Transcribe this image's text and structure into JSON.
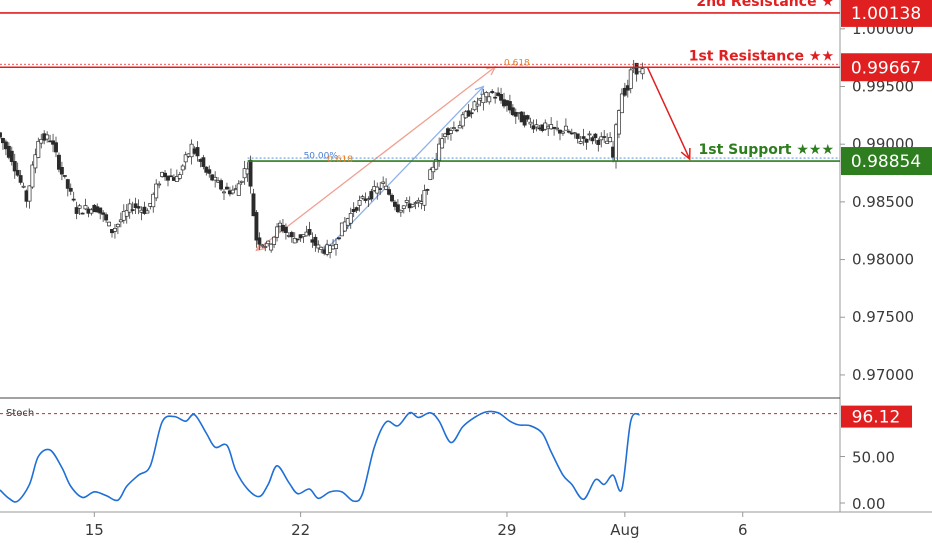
{
  "chart_data": [
    {
      "type": "candlestick",
      "ylim": [
        0.968,
        1.0025
      ],
      "y_ticks": [
        "1.00000",
        "0.99500",
        "0.99000",
        "0.98500",
        "0.98000",
        "0.97500",
        "0.97000"
      ],
      "y_tick_values": [
        1.0,
        0.995,
        0.99,
        0.985,
        0.98,
        0.975,
        0.97
      ],
      "x_ticks": [
        "15",
        "22",
        "29",
        "Aug",
        "6"
      ],
      "x_tick_values": [
        15,
        22,
        29,
        33,
        37
      ],
      "xlim": [
        11.8,
        40.3
      ],
      "levels": [
        {
          "name": "2nd Resistance ★",
          "value": 1.00138,
          "value_label": "1.00138",
          "color": "#e02020"
        },
        {
          "name": "1st Resistance ★★",
          "value": 0.99667,
          "value_label": "0.99667",
          "color": "#e02020"
        },
        {
          "name": "1st Support ★★★",
          "value": 0.98854,
          "value_label": "0.98854",
          "color": "#2e7d1f"
        }
      ],
      "fib_labels": [
        {
          "text": "0.618",
          "x": 28.9,
          "y": 0.99683,
          "color": "#e67e22"
        },
        {
          "text": "50.00%",
          "x": 22.1,
          "y": 0.98875,
          "color": "#4a7fd6"
        },
        {
          "text": "0.618",
          "x": 22.9,
          "y": 0.98845,
          "color": "#e67e22"
        }
      ],
      "path": [
        [
          11.8,
          0.991
        ],
        [
          12.3,
          0.9888
        ],
        [
          12.8,
          0.9852
        ],
        [
          13.2,
          0.9905
        ],
        [
          13.6,
          0.9905
        ],
        [
          14.0,
          0.9875
        ],
        [
          14.5,
          0.9843
        ],
        [
          15.2,
          0.9845
        ],
        [
          15.7,
          0.9825
        ],
        [
          16.4,
          0.9847
        ],
        [
          16.9,
          0.9842
        ],
        [
          17.4,
          0.9875
        ],
        [
          17.9,
          0.987
        ],
        [
          18.4,
          0.9898
        ],
        [
          18.9,
          0.9875
        ],
        [
          19.5,
          0.986
        ],
        [
          19.9,
          0.986
        ],
        [
          20.3,
          0.9883
        ],
        [
          20.6,
          0.9818
        ],
        [
          21.0,
          0.9812
        ],
        [
          21.4,
          0.983
        ],
        [
          21.8,
          0.9818
        ],
        [
          22.3,
          0.9822
        ],
        [
          22.7,
          0.981
        ],
        [
          23.1,
          0.9808
        ],
        [
          23.6,
          0.9832
        ],
        [
          24.0,
          0.9847
        ],
        [
          24.4,
          0.9855
        ],
        [
          24.9,
          0.9865
        ],
        [
          25.4,
          0.9845
        ],
        [
          25.8,
          0.9848
        ],
        [
          26.2,
          0.9848
        ],
        [
          26.6,
          0.9882
        ],
        [
          27.0,
          0.9912
        ],
        [
          27.4,
          0.9915
        ],
        [
          27.8,
          0.9928
        ],
        [
          28.2,
          0.9938
        ],
        [
          28.6,
          0.9944
        ],
        [
          29.0,
          0.9936
        ],
        [
          29.4,
          0.9925
        ],
        [
          29.9,
          0.9918
        ],
        [
          30.3,
          0.9915
        ],
        [
          30.7,
          0.9912
        ],
        [
          31.1,
          0.9912
        ],
        [
          31.5,
          0.9904
        ],
        [
          31.9,
          0.9906
        ],
        [
          32.2,
          0.9904
        ],
        [
          32.6,
          0.9902
        ],
        [
          32.7,
          0.9888
        ],
        [
          32.85,
          0.9925
        ],
        [
          33.0,
          0.9945
        ],
        [
          33.2,
          0.9948
        ],
        [
          33.35,
          0.9968
        ],
        [
          33.5,
          0.9965
        ],
        [
          33.7,
          0.9963
        ]
      ],
      "fib_arrows": [
        {
          "from": [
            20.5,
            0.9808
          ],
          "to": [
            28.6,
            0.9967
          ],
          "color": "#f0a090"
        },
        {
          "from": [
            22.8,
            0.9807
          ],
          "to": [
            28.2,
            0.995
          ],
          "color": "#8fb2ea"
        }
      ],
      "forecast_arrow": {
        "points": [
          [
            33.7,
            0.99667
          ],
          [
            35.2,
            0.98854
          ]
        ],
        "color": "#e02020"
      }
    },
    {
      "type": "line",
      "label": "Stoch",
      "ylim": [
        0,
        100
      ],
      "y_ticks": [
        "50.00",
        "0.00"
      ],
      "y_tick_values": [
        50,
        0
      ],
      "reference_line": 96.12,
      "value_label": "96.12",
      "series": [
        {
          "color": "#1f6fd6",
          "x": [
            11.8,
            12.1,
            12.4,
            12.8,
            13.1,
            13.5,
            13.9,
            14.2,
            14.6,
            15.0,
            15.4,
            15.8,
            16.1,
            16.5,
            16.9,
            17.3,
            17.7,
            18.1,
            18.4,
            18.8,
            19.1,
            19.5,
            19.8,
            20.2,
            20.6,
            20.9,
            21.2,
            21.6,
            21.9,
            22.3,
            22.6,
            23.0,
            23.4,
            23.8,
            24.1,
            24.5,
            24.9,
            25.3,
            25.7,
            26.0,
            26.4,
            26.7,
            27.1,
            27.5,
            27.9,
            28.3,
            28.7,
            29.1,
            29.4,
            29.8,
            30.2,
            30.5,
            30.9,
            31.2,
            31.6,
            32.0,
            32.3,
            32.6,
            32.9,
            33.2,
            33.5
          ],
          "values": [
            14,
            5,
            2,
            20,
            50,
            57,
            38,
            18,
            6,
            12,
            8,
            3,
            18,
            30,
            40,
            87,
            93,
            88,
            95,
            75,
            60,
            62,
            35,
            15,
            7,
            20,
            40,
            22,
            10,
            15,
            5,
            12,
            12,
            2,
            10,
            60,
            87,
            83,
            97,
            92,
            97,
            88,
            65,
            82,
            92,
            98,
            97,
            88,
            84,
            83,
            75,
            55,
            30,
            20,
            4,
            25,
            20,
            30,
            15,
            88,
            95
          ]
        }
      ]
    }
  ]
}
